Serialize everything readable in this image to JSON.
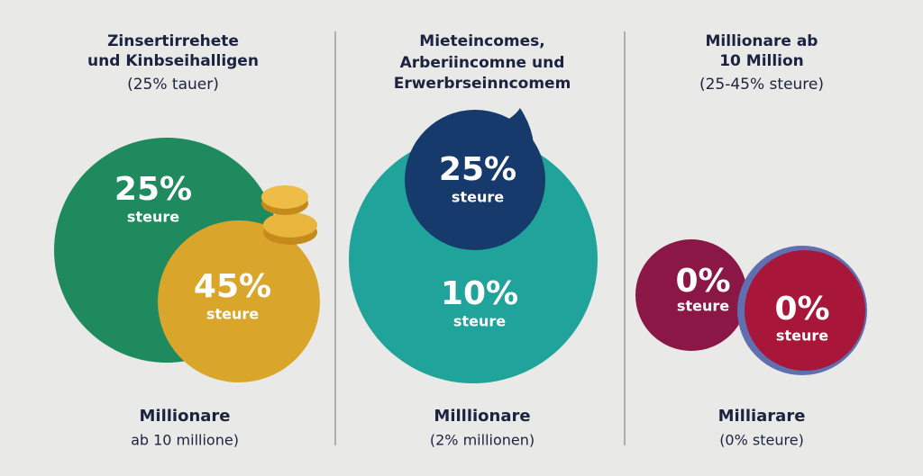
{
  "panels": [
    {
      "title": [
        "Zinsertirrehete",
        "und Kinbseihalligen",
        "(25% tauer)"
      ],
      "circles": [
        {
          "value": "25%",
          "label": "steure"
        },
        {
          "value": "45%",
          "label": "steure"
        }
      ],
      "footer": [
        "Millionare",
        "ab 10 millione)"
      ]
    },
    {
      "title": [
        "Mieteincomes,",
        "Arberiincomne und",
        "Erwerbrseinncomem"
      ],
      "circles": [
        {
          "value": "25%",
          "label": "steure"
        },
        {
          "value": "10%",
          "label": "steure"
        }
      ],
      "footer": [
        "Milllionare",
        "(2% millionen)"
      ]
    },
    {
      "title": [
        "Millionare ab",
        "10 Million",
        "(25-45% steure)"
      ],
      "circles": [
        {
          "value": "0%",
          "label": "steure"
        },
        {
          "value": "0%",
          "label": "steure"
        }
      ],
      "footer": [
        "Milliarare",
        "(0% steure)"
      ]
    }
  ]
}
